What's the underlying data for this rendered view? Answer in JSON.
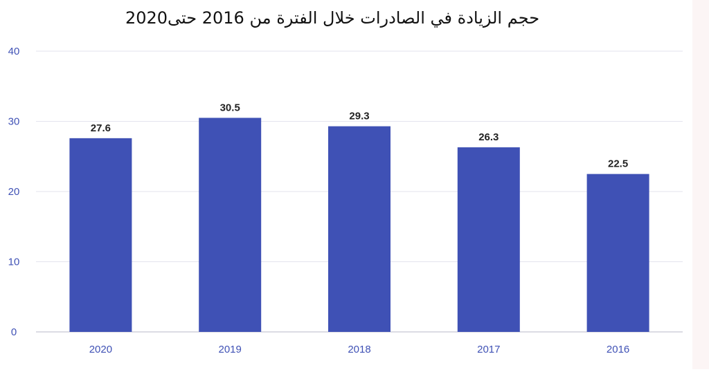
{
  "chart_data": {
    "type": "bar",
    "title": "حجم الزيادة في الصادرات خلال الفترة من 2016 حتى2020",
    "categories": [
      "2020",
      "2019",
      "2018",
      "2017",
      "2016"
    ],
    "values": [
      27.6,
      30.5,
      29.3,
      26.3,
      22.5
    ],
    "value_labels": [
      "27.6",
      "30.5",
      "29.3",
      "26.3",
      "22.5"
    ],
    "y_ticks": [
      "0",
      "10",
      "20",
      "30",
      "40"
    ],
    "ylim": [
      0,
      40
    ],
    "xlabel": "",
    "ylabel": "",
    "grid": true,
    "colors": {
      "bar": "#3f51b5",
      "axis_text": "#3f51b5",
      "data_label": "#222222"
    }
  }
}
